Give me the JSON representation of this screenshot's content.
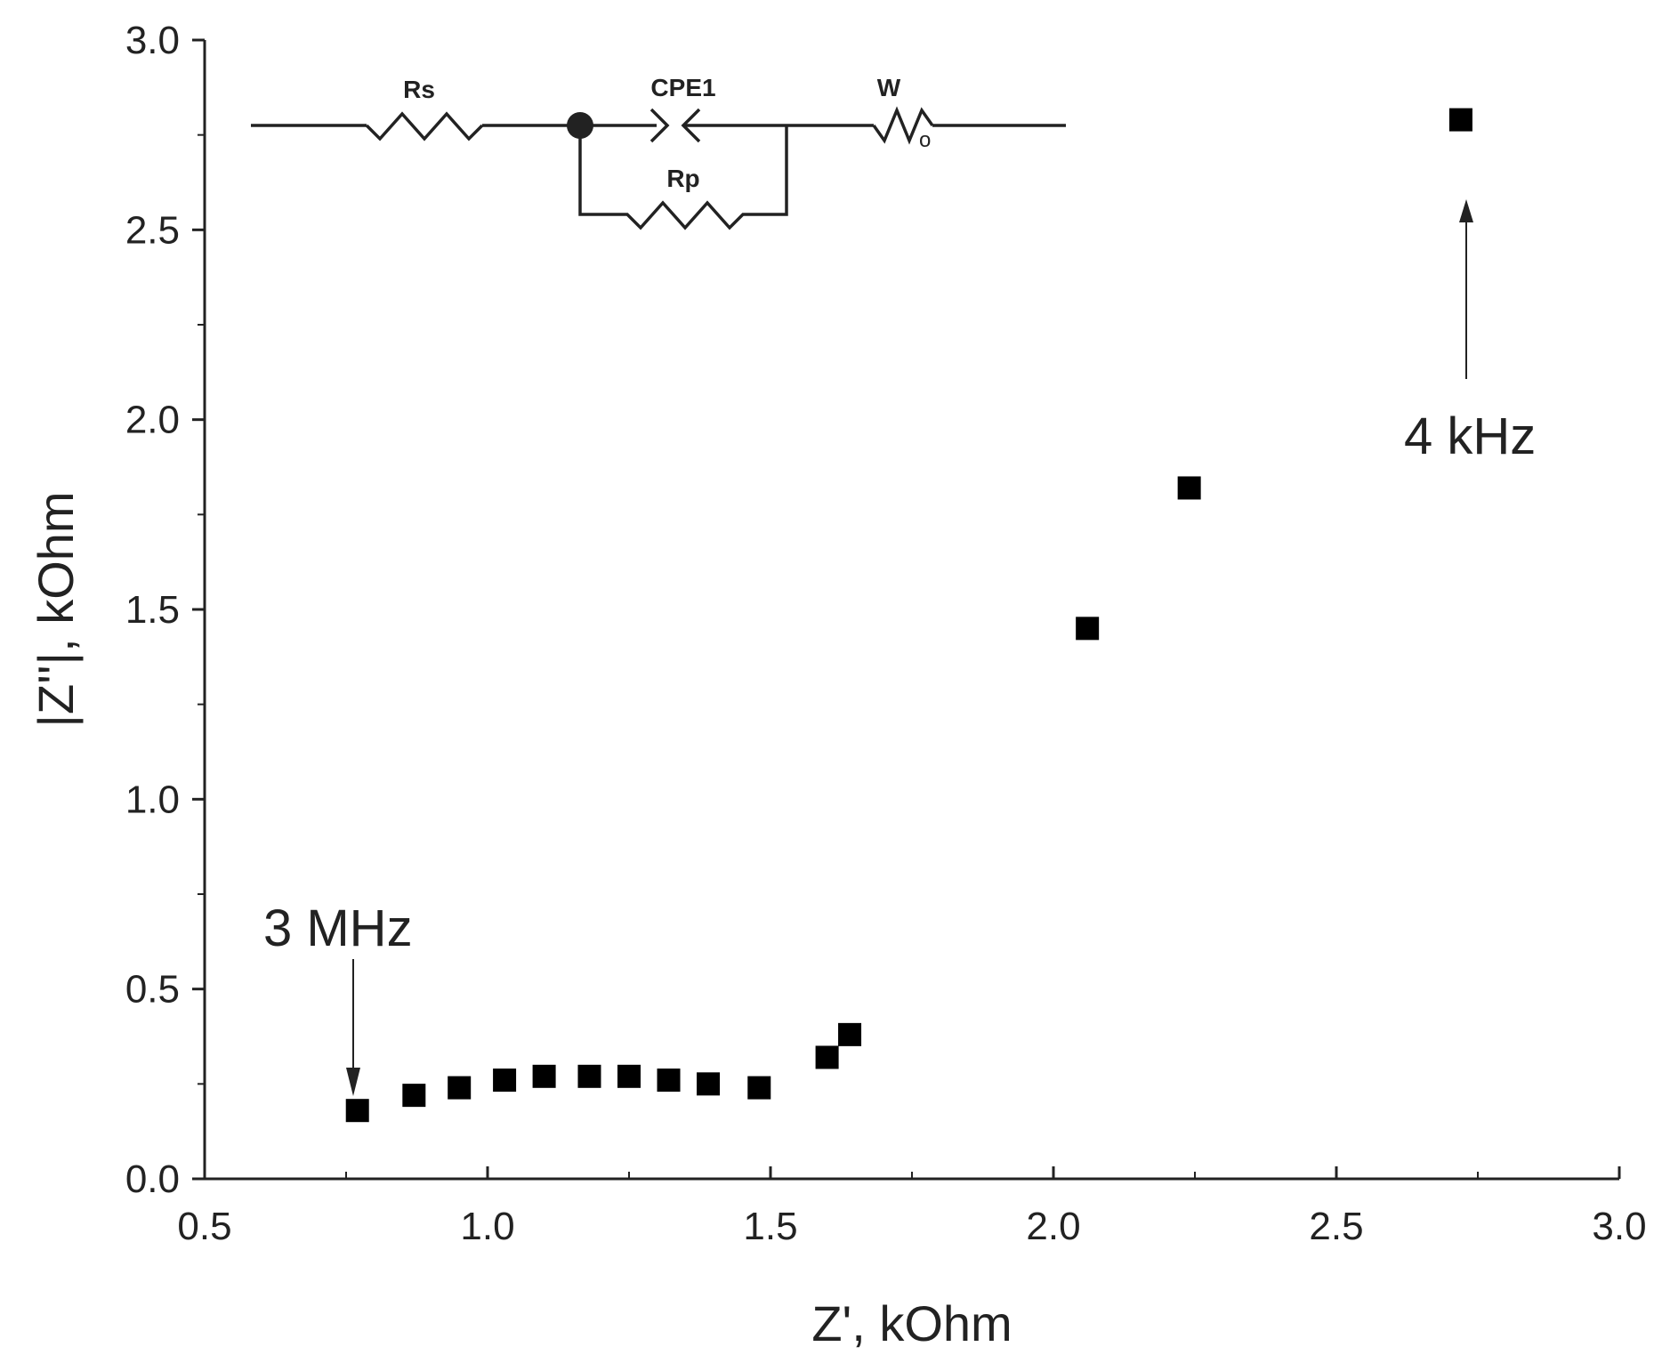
{
  "chart_data": {
    "type": "scatter",
    "xlabel": "Z', kOhm",
    "ylabel": "|Z''|, kOhm",
    "xlim": [
      0.5,
      3.0
    ],
    "ylim": [
      0.0,
      3.0
    ],
    "xticks": [
      "0.5",
      "1.0",
      "1.5",
      "2.0",
      "2.5",
      "3.0"
    ],
    "yticks": [
      "0.0",
      "0.5",
      "1.0",
      "1.5",
      "2.0",
      "2.5",
      "3.0"
    ],
    "grid": false,
    "marker": "square",
    "color": "#000000",
    "points": [
      {
        "x": 0.77,
        "y": 0.18
      },
      {
        "x": 0.87,
        "y": 0.22
      },
      {
        "x": 0.95,
        "y": 0.24
      },
      {
        "x": 1.03,
        "y": 0.26
      },
      {
        "x": 1.1,
        "y": 0.27
      },
      {
        "x": 1.18,
        "y": 0.27
      },
      {
        "x": 1.25,
        "y": 0.27
      },
      {
        "x": 1.32,
        "y": 0.26
      },
      {
        "x": 1.39,
        "y": 0.25
      },
      {
        "x": 1.48,
        "y": 0.24
      },
      {
        "x": 1.6,
        "y": 0.32
      },
      {
        "x": 1.64,
        "y": 0.38
      },
      {
        "x": 2.06,
        "y": 1.45
      },
      {
        "x": 2.24,
        "y": 1.82
      },
      {
        "x": 2.72,
        "y": 2.79
      }
    ],
    "annotations": [
      {
        "text": "3 MHz",
        "x": 0.77,
        "y": 0.18
      },
      {
        "text": "4 kHz",
        "x": 2.72,
        "y": 2.79
      }
    ],
    "inset_circuit": {
      "labels": [
        "Rs",
        "CPE1",
        "W",
        "Rp"
      ],
      "subscript": "o"
    }
  }
}
